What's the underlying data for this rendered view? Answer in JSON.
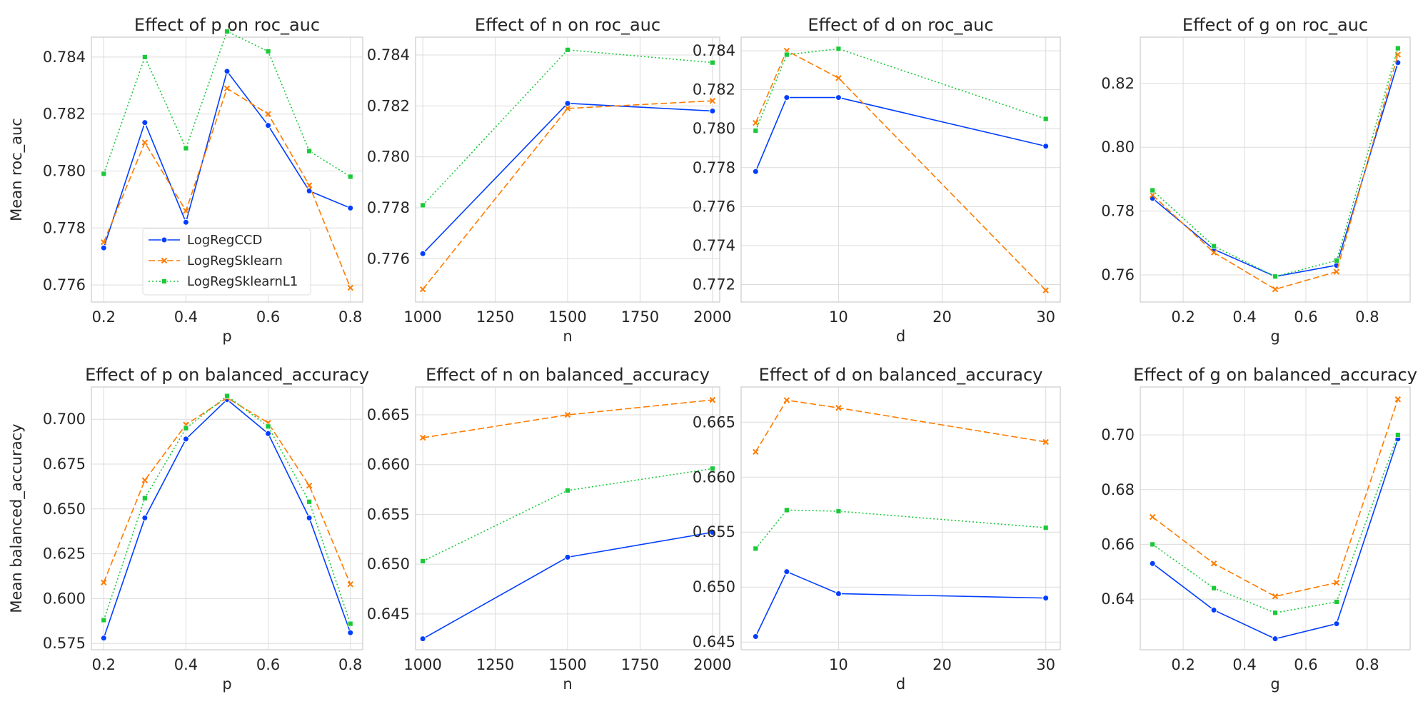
{
  "colors": {
    "LogRegCCD": "#023eff",
    "LogRegSklearn": "#ff7c00",
    "LogRegSklearnL1": "#1ac938",
    "grid": "#dcdcdc",
    "spine": "#cccccc",
    "text": "#262626"
  },
  "series_styles": [
    {
      "name": "LogRegCCD",
      "dash": "none",
      "marker": "circle"
    },
    {
      "name": "LogRegSklearn",
      "dash": "dashed",
      "marker": "x"
    },
    {
      "name": "LogRegSklearnL1",
      "dash": "dotted",
      "marker": "square"
    }
  ],
  "chart_data": [
    {
      "type": "line",
      "title": "Effect of p on roc_auc",
      "xlabel": "p",
      "ylabel": "Mean roc_auc",
      "xlim": [
        0.17,
        0.83
      ],
      "ylim": [
        0.7754,
        0.7847
      ],
      "xticks": [
        0.2,
        0.4,
        0.6,
        0.8
      ],
      "xtick_labels": [
        "0.2",
        "0.4",
        "0.6",
        "0.8"
      ],
      "yticks": [
        0.776,
        0.778,
        0.78,
        0.782,
        0.784
      ],
      "ytick_labels": [
        "0.776",
        "0.778",
        "0.780",
        "0.782",
        "0.784"
      ],
      "grid": true,
      "legend": {
        "placement": "lower-center",
        "entries": [
          "LogRegCCD",
          "LogRegSklearn",
          "LogRegSklearnL1"
        ]
      },
      "x": [
        0.2,
        0.3,
        0.4,
        0.5,
        0.6,
        0.7,
        0.8
      ],
      "series": [
        {
          "name": "LogRegCCD",
          "values": [
            0.7773,
            0.7817,
            0.7782,
            0.7835,
            0.7816,
            0.7793,
            0.7787
          ]
        },
        {
          "name": "LogRegSklearn",
          "values": [
            0.7775,
            0.781,
            0.7786,
            0.7829,
            0.782,
            0.7795,
            0.7759
          ]
        },
        {
          "name": "LogRegSklearnL1",
          "values": [
            0.7799,
            0.784,
            0.7808,
            0.7849,
            0.7842,
            0.7807,
            0.7798
          ]
        }
      ]
    },
    {
      "type": "line",
      "title": "Effect of n on roc_auc",
      "xlabel": "n",
      "ylabel": "",
      "xlim": [
        975,
        2025
      ],
      "ylim": [
        0.7743,
        0.7847
      ],
      "xticks": [
        1000,
        1250,
        1500,
        1750,
        2000
      ],
      "xtick_labels": [
        "1000",
        "1250",
        "1500",
        "1750",
        "2000"
      ],
      "yticks": [
        0.776,
        0.778,
        0.78,
        0.782,
        0.784
      ],
      "ytick_labels": [
        "0.776",
        "0.778",
        "0.780",
        "0.782",
        "0.784"
      ],
      "grid": true,
      "x": [
        1000,
        1500,
        2000
      ],
      "series": [
        {
          "name": "LogRegCCD",
          "values": [
            0.7762,
            0.7821,
            0.7818
          ]
        },
        {
          "name": "LogRegSklearn",
          "values": [
            0.7748,
            0.7819,
            0.7822
          ]
        },
        {
          "name": "LogRegSklearnL1",
          "values": [
            0.7781,
            0.7842,
            0.7837
          ]
        }
      ]
    },
    {
      "type": "line",
      "title": "Effect of d on roc_auc",
      "xlabel": "d",
      "ylabel": "",
      "xlim": [
        0.6,
        31.4
      ],
      "ylim": [
        0.7711,
        0.7847
      ],
      "xticks": [
        10,
        20,
        30
      ],
      "xtick_labels": [
        "10",
        "20",
        "30"
      ],
      "yticks": [
        0.772,
        0.774,
        0.776,
        0.778,
        0.78,
        0.782,
        0.784
      ],
      "ytick_labels": [
        "0.772",
        "0.774",
        "0.776",
        "0.778",
        "0.780",
        "0.782",
        "0.784"
      ],
      "grid": true,
      "x": [
        2,
        5,
        10,
        30
      ],
      "series": [
        {
          "name": "LogRegCCD",
          "values": [
            0.7778,
            0.7816,
            0.7816,
            0.7791
          ]
        },
        {
          "name": "LogRegSklearn",
          "values": [
            0.7803,
            0.784,
            0.7826,
            0.7717
          ]
        },
        {
          "name": "LogRegSklearnL1",
          "values": [
            0.7799,
            0.7838,
            0.7841,
            0.7805
          ]
        }
      ]
    },
    {
      "type": "line",
      "title": "Effect of g on roc_auc",
      "xlabel": "g",
      "ylabel": "",
      "xlim": [
        0.06,
        0.94
      ],
      "ylim": [
        0.7515,
        0.8345
      ],
      "xticks": [
        0.2,
        0.4,
        0.6,
        0.8
      ],
      "xtick_labels": [
        "0.2",
        "0.4",
        "0.6",
        "0.8"
      ],
      "yticks": [
        0.76,
        0.78,
        0.8,
        0.82
      ],
      "ytick_labels": [
        "0.76",
        "0.78",
        "0.80",
        "0.82"
      ],
      "grid": true,
      "x": [
        0.1,
        0.3,
        0.5,
        0.7,
        0.9
      ],
      "series": [
        {
          "name": "LogRegCCD",
          "values": [
            0.784,
            0.768,
            0.7595,
            0.763,
            0.8265
          ]
        },
        {
          "name": "LogRegSklearn",
          "values": [
            0.785,
            0.767,
            0.7555,
            0.761,
            0.829
          ]
        },
        {
          "name": "LogRegSklearnL1",
          "values": [
            0.7865,
            0.769,
            0.7595,
            0.7645,
            0.831
          ]
        }
      ]
    },
    {
      "type": "line",
      "title": "Effect of p on balanced_accuracy",
      "xlabel": "p",
      "ylabel": "Mean balanced_accuracy",
      "xlim": [
        0.17,
        0.83
      ],
      "ylim": [
        0.5715,
        0.718
      ],
      "xticks": [
        0.2,
        0.4,
        0.6,
        0.8
      ],
      "xtick_labels": [
        "0.2",
        "0.4",
        "0.6",
        "0.8"
      ],
      "yticks": [
        0.575,
        0.6,
        0.625,
        0.65,
        0.675,
        0.7
      ],
      "ytick_labels": [
        "0.575",
        "0.600",
        "0.625",
        "0.650",
        "0.675",
        "0.700"
      ],
      "grid": true,
      "x": [
        0.2,
        0.3,
        0.4,
        0.5,
        0.6,
        0.7,
        0.8
      ],
      "series": [
        {
          "name": "LogRegCCD",
          "values": [
            0.578,
            0.645,
            0.689,
            0.711,
            0.692,
            0.645,
            0.581
          ]
        },
        {
          "name": "LogRegSklearn",
          "values": [
            0.609,
            0.666,
            0.697,
            0.712,
            0.698,
            0.663,
            0.608
          ]
        },
        {
          "name": "LogRegSklearnL1",
          "values": [
            0.588,
            0.656,
            0.695,
            0.713,
            0.696,
            0.654,
            0.586
          ]
        }
      ]
    },
    {
      "type": "line",
      "title": "Effect of n on balanced_accuracy",
      "xlabel": "n",
      "ylabel": "",
      "xlim": [
        975,
        2025
      ],
      "ylim": [
        0.6414,
        0.6678
      ],
      "xticks": [
        1000,
        1250,
        1500,
        1750,
        2000
      ],
      "xtick_labels": [
        "1000",
        "1250",
        "1500",
        "1750",
        "2000"
      ],
      "yticks": [
        0.645,
        0.65,
        0.655,
        0.66,
        0.665
      ],
      "ytick_labels": [
        "0.645",
        "0.650",
        "0.655",
        "0.660",
        "0.665"
      ],
      "grid": true,
      "x": [
        1000,
        1500,
        2000
      ],
      "series": [
        {
          "name": "LogRegCCD",
          "values": [
            0.6425,
            0.6507,
            0.6532
          ]
        },
        {
          "name": "LogRegSklearn",
          "values": [
            0.6627,
            0.665,
            0.6665
          ]
        },
        {
          "name": "LogRegSklearnL1",
          "values": [
            0.6503,
            0.6574,
            0.6596
          ]
        }
      ]
    },
    {
      "type": "line",
      "title": "Effect of d on balanced_accuracy",
      "xlabel": "d",
      "ylabel": "",
      "xlim": [
        0.6,
        31.4
      ],
      "ylim": [
        0.6443,
        0.6682
      ],
      "xticks": [
        10,
        20,
        30
      ],
      "xtick_labels": [
        "10",
        "20",
        "30"
      ],
      "yticks": [
        0.645,
        0.65,
        0.655,
        0.66,
        0.665
      ],
      "ytick_labels": [
        "0.645",
        "0.650",
        "0.655",
        "0.660",
        "0.665"
      ],
      "grid": true,
      "x": [
        2,
        5,
        10,
        30
      ],
      "series": [
        {
          "name": "LogRegCCD",
          "values": [
            0.6455,
            0.6514,
            0.6494,
            0.649
          ]
        },
        {
          "name": "LogRegSklearn",
          "values": [
            0.6623,
            0.667,
            0.6663,
            0.6632
          ]
        },
        {
          "name": "LogRegSklearnL1",
          "values": [
            0.6535,
            0.657,
            0.6569,
            0.6554
          ]
        }
      ]
    },
    {
      "type": "line",
      "title": "Effect of g on balanced_accuracy",
      "xlabel": "g",
      "ylabel": "",
      "xlim": [
        0.06,
        0.94
      ],
      "ylim": [
        0.6215,
        0.7175
      ],
      "xticks": [
        0.2,
        0.4,
        0.6,
        0.8
      ],
      "xtick_labels": [
        "0.2",
        "0.4",
        "0.6",
        "0.8"
      ],
      "yticks": [
        0.64,
        0.66,
        0.68,
        0.7
      ],
      "ytick_labels": [
        "0.64",
        "0.66",
        "0.68",
        "0.70"
      ],
      "grid": true,
      "x": [
        0.1,
        0.3,
        0.5,
        0.7,
        0.9
      ],
      "series": [
        {
          "name": "LogRegCCD",
          "values": [
            0.653,
            0.636,
            0.6255,
            0.631,
            0.6985
          ]
        },
        {
          "name": "LogRegSklearn",
          "values": [
            0.67,
            0.653,
            0.641,
            0.646,
            0.713
          ]
        },
        {
          "name": "LogRegSklearnL1",
          "values": [
            0.66,
            0.644,
            0.635,
            0.639,
            0.7
          ]
        }
      ]
    }
  ]
}
